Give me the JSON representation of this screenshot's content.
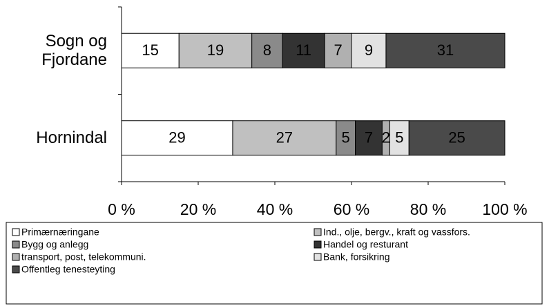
{
  "chart_data": {
    "type": "stacked-bar-horizontal",
    "categories": [
      "Sogn og Fjordane",
      "Hornindal"
    ],
    "series": [
      {
        "name": "Primærnæringane",
        "color": "#ffffff",
        "values": [
          15,
          29
        ]
      },
      {
        "name": "Ind., olje, bergv., kraft og vassfors.",
        "color": "#c0c0c0",
        "values": [
          19,
          27
        ]
      },
      {
        "name": "Bygg og anlegg",
        "color": "#8a8a8a",
        "values": [
          8,
          5
        ]
      },
      {
        "name": "Handel og resturant",
        "color": "#333333",
        "values": [
          11,
          7
        ]
      },
      {
        "name": "transport, post, telekommuni.",
        "color": "#b0b0b0",
        "values": [
          7,
          2
        ]
      },
      {
        "name": "Bank, forsikring",
        "color": "#e2e2e2",
        "values": [
          9,
          5
        ]
      },
      {
        "name": "Offentleg tenesteyting",
        "color": "#4a4a4a",
        "values": [
          31,
          25
        ]
      }
    ],
    "xlim": [
      0,
      100
    ],
    "xticks": [
      {
        "value": 0,
        "label": "0 %"
      },
      {
        "value": 20,
        "label": "20 %"
      },
      {
        "value": 40,
        "label": "40 %"
      },
      {
        "value": 60,
        "label": "60 %"
      },
      {
        "value": 80,
        "label": "80 %"
      },
      {
        "value": 100,
        "label": "100 %"
      }
    ],
    "legend": "bottom"
  }
}
